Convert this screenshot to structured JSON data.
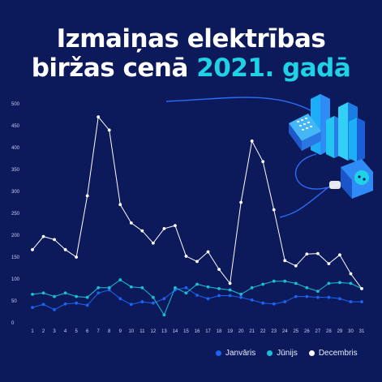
{
  "title": {
    "line1": "Izmaiņas elektrības",
    "line2_main": "biržas cenā",
    "line2_accent": "2021. gadā"
  },
  "colors": {
    "background": "#0c1a5c",
    "accent": "#1fd3e6",
    "janvaris": "#1c63f0",
    "junijs": "#19bfd3",
    "decembris": "#ffffff"
  },
  "chart_data": {
    "type": "line",
    "x": [
      1,
      2,
      3,
      4,
      5,
      6,
      7,
      8,
      9,
      10,
      11,
      12,
      13,
      14,
      15,
      16,
      17,
      18,
      19,
      20,
      21,
      22,
      23,
      24,
      25,
      26,
      27,
      28,
      29,
      30,
      31
    ],
    "xlabel": "",
    "ylabel": "",
    "ylim": [
      0,
      500
    ],
    "yticks": [
      0,
      50,
      100,
      150,
      200,
      250,
      300,
      350,
      400,
      450,
      500
    ],
    "grid": false,
    "legend_position": "bottom-right",
    "series": [
      {
        "name": "Janvāris",
        "color_key": "janvaris",
        "values": [
          35,
          42,
          30,
          43,
          45,
          40,
          68,
          75,
          55,
          42,
          48,
          45,
          55,
          75,
          80,
          63,
          55,
          62,
          62,
          58,
          52,
          45,
          43,
          48,
          60,
          60,
          58,
          58,
          55,
          48,
          48
        ]
      },
      {
        "name": "Jūnijs",
        "color_key": "junijs",
        "values": [
          65,
          68,
          60,
          68,
          60,
          58,
          80,
          80,
          98,
          82,
          80,
          58,
          18,
          80,
          68,
          88,
          82,
          78,
          75,
          65,
          80,
          88,
          95,
          95,
          90,
          80,
          72,
          90,
          92,
          90,
          78
        ]
      },
      {
        "name": "Decembris",
        "color_key": "decembris",
        "values": [
          167,
          197,
          190,
          167,
          150,
          290,
          470,
          440,
          270,
          228,
          210,
          182,
          215,
          222,
          152,
          140,
          162,
          122,
          90,
          275,
          415,
          368,
          258,
          142,
          130,
          157,
          158,
          135,
          155,
          112,
          78
        ]
      }
    ]
  }
}
